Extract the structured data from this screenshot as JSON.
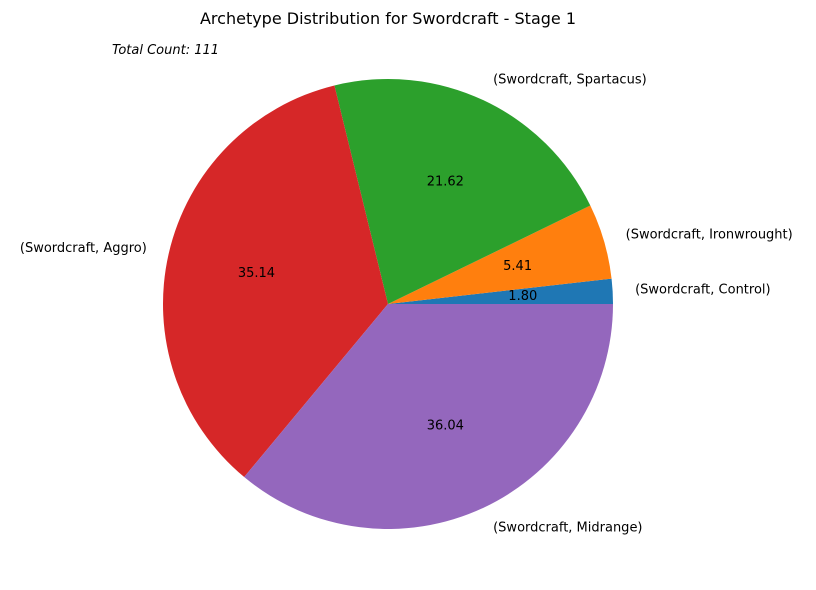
{
  "chart_data": {
    "type": "pie",
    "title": "Archetype Distribution for Swordcraft - Stage 1",
    "annotation": "Total Count: 111",
    "categories": [
      "(Swordcraft, Control)",
      "(Swordcraft, Ironwrought)",
      "(Swordcraft, Spartacus)",
      "(Swordcraft, Aggro)",
      "(Swordcraft, Midrange)"
    ],
    "values": [
      1.8,
      5.41,
      21.62,
      35.14,
      36.04
    ],
    "value_labels": [
      "1.80",
      "5.41",
      "21.62",
      "35.14",
      "36.04"
    ],
    "colors": [
      "#1f77b4",
      "#ff7f0e",
      "#2ca02c",
      "#d62728",
      "#9467bd"
    ],
    "start_angle_deg": 0,
    "direction": "counterclockwise",
    "legend": "none"
  }
}
